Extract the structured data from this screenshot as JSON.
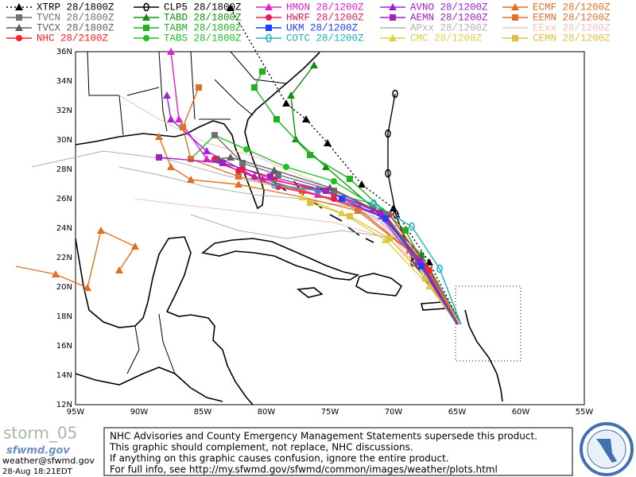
{
  "legend": [
    {
      "label": "XTRP 28/1800Z",
      "color": "#000000",
      "marker": "triangle",
      "dash": true
    },
    {
      "label": "CLP5 28/1800Z",
      "color": "#000000",
      "marker": "ring"
    },
    {
      "label": "HMON 28/1200Z",
      "color": "#e020d0",
      "marker": "triangle"
    },
    {
      "label": "AVNO 28/1200Z",
      "color": "#a020e0",
      "marker": "triangle"
    },
    {
      "label": "ECMF 28/1200Z",
      "color": "#e07020",
      "marker": "triangle"
    },
    {
      "label": "TVCN 28/1800Z",
      "color": "#707070",
      "marker": "square"
    },
    {
      "label": "TABD 28/1800Z",
      "color": "#109010",
      "marker": "triangle"
    },
    {
      "label": "HWRF 28/1200Z",
      "color": "#e0205a",
      "marker": "circle"
    },
    {
      "label": "AEMN 28/1200Z",
      "color": "#a020c0",
      "marker": "square"
    },
    {
      "label": "EEMN 28/1200Z",
      "color": "#e07030",
      "marker": "square"
    },
    {
      "label": "TVCX 28/1800Z",
      "color": "#606060",
      "marker": "triangle"
    },
    {
      "label": "TABM 28/1800Z",
      "color": "#20b020",
      "marker": "square"
    },
    {
      "label": "UKM 28/1200Z",
      "color": "#2040ff",
      "marker": "square"
    },
    {
      "label": "APxx 28/1200Z",
      "color": "#b0b0b0",
      "marker": "none"
    },
    {
      "label": "EExx 28/1200Z",
      "color": "#f0c0c0",
      "marker": "none"
    },
    {
      "label": "NHC 28/2100Z",
      "color": "#ff2020",
      "marker": "circle"
    },
    {
      "label": "TABS 28/1800Z",
      "color": "#20c020",
      "marker": "circle"
    },
    {
      "label": "COTC 28/1200Z",
      "color": "#20b0c0",
      "marker": "ring"
    },
    {
      "label": "CMC 28/1200Z",
      "color": "#e0d040",
      "marker": "triangle"
    },
    {
      "label": "CEMN 28/1200Z",
      "color": "#e0c040",
      "marker": "square"
    }
  ],
  "lat_labels": [
    "36N",
    "34N",
    "32N",
    "30N",
    "28N",
    "26N",
    "24N",
    "22N",
    "20N",
    "18N",
    "16N",
    "14N",
    "12N"
  ],
  "lon_labels": [
    "95W",
    "90W",
    "85W",
    "80W",
    "75W",
    "70W",
    "65W",
    "60W",
    "55W"
  ],
  "footer": {
    "storm": "storm_05",
    "site": "sfwmd.gov",
    "email": "weather@sfwmd.gov",
    "timestamp": "28-Aug 18:21EDT",
    "notice": [
      "NHC Advisories and County Emergency Management Statements supersede this product.",
      "This graphic should complement, not replace, NHC discussions.",
      "If anything on this graphic causes confusion, ignore the entire product.",
      "For full info, see  http://my.sfwmd.gov/sfwmd/common/images/weather/plots.html"
    ]
  }
}
